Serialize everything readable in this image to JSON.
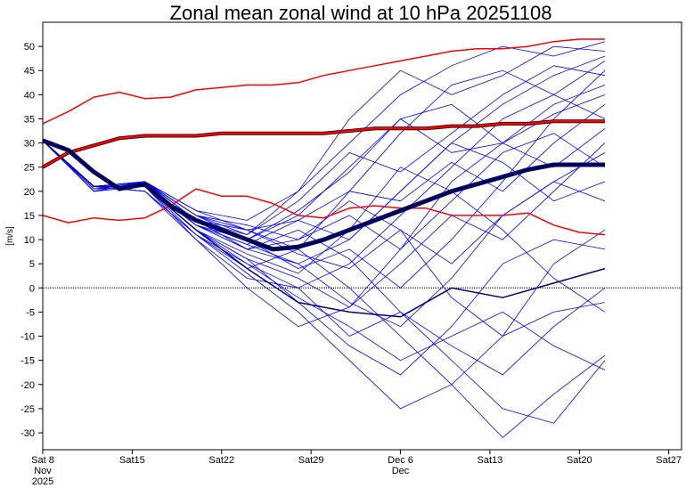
{
  "chart_data": {
    "type": "line",
    "title": "Zonal mean zonal wind at 10 hPa 20251108",
    "ylabel": "[m/s]",
    "xlabel": "",
    "ylim": [
      -33.5,
      55
    ],
    "xlim_days": [
      0,
      50
    ],
    "yticks": [
      50,
      45,
      40,
      35,
      30,
      25,
      20,
      15,
      10,
      5,
      0,
      -5,
      -10,
      -15,
      -20,
      -25,
      -30
    ],
    "xticks": [
      {
        "day": 0,
        "lines": [
          "Sat 8",
          "Nov",
          "2025"
        ]
      },
      {
        "day": 7,
        "lines": [
          "Sat15"
        ]
      },
      {
        "day": 14,
        "lines": [
          "Sat22"
        ]
      },
      {
        "day": 21,
        "lines": [
          "Sat29"
        ]
      },
      {
        "day": 28,
        "lines": [
          "Dec 6",
          "Dec"
        ]
      },
      {
        "day": 35,
        "lines": [
          "Sat13"
        ]
      },
      {
        "day": 42,
        "lines": [
          "Sat20"
        ]
      },
      {
        "day": 49,
        "lines": [
          "Sat27"
        ]
      }
    ],
    "zero_line": 0,
    "colors": {
      "member": "#0000ff",
      "member_dark": "#000080",
      "mean": "#000033",
      "clim": "#ff0000"
    },
    "member_days": [
      0,
      4,
      8,
      12,
      16,
      20,
      24,
      28,
      32,
      36,
      40,
      44
    ],
    "members": [
      [
        30.5,
        21,
        22,
        14,
        8,
        5,
        10,
        20,
        30,
        38,
        44,
        48
      ],
      [
        30.5,
        21,
        21,
        12,
        5,
        -2,
        -8,
        -15,
        -10,
        -5,
        -12,
        -17
      ],
      [
        30.5,
        20,
        22,
        16,
        14,
        20,
        30,
        40,
        46,
        50,
        48,
        51
      ],
      [
        30.5,
        21,
        20,
        11,
        3,
        -5,
        -15,
        -25,
        -20,
        -10,
        -5,
        -3
      ],
      [
        30.5,
        20.5,
        21,
        13,
        10,
        15,
        25,
        35,
        28,
        30,
        38,
        42
      ],
      [
        30.5,
        21,
        22,
        15,
        12,
        8,
        0,
        -10,
        -20,
        -31,
        -22,
        -14
      ],
      [
        30.5,
        21,
        21,
        10,
        2,
        0,
        5,
        15,
        25,
        35,
        40,
        35
      ],
      [
        30.5,
        20,
        22,
        14,
        11,
        18,
        28,
        24,
        32,
        40,
        46,
        44
      ],
      [
        30.5,
        21,
        21,
        12,
        6,
        2,
        -4,
        5,
        15,
        10,
        20,
        30
      ],
      [
        30.5,
        20.5,
        22,
        13,
        8,
        12,
        6,
        -5,
        -15,
        -25,
        -28,
        -15
      ],
      [
        30.5,
        21,
        20,
        11,
        4,
        8,
        20,
        32,
        42,
        45,
        40,
        47
      ],
      [
        30.5,
        21,
        22,
        15,
        13,
        10,
        15,
        8,
        18,
        28,
        32,
        25
      ],
      [
        30.5,
        20,
        21,
        12,
        7,
        3,
        12,
        25,
        20,
        12,
        2,
        -5
      ],
      [
        30.5,
        21,
        22,
        16,
        12,
        14,
        20,
        18,
        26,
        20,
        30,
        38
      ],
      [
        30.5,
        20.5,
        21,
        13,
        9,
        5,
        -3,
        -8,
        2,
        15,
        22,
        18
      ],
      [
        30.5,
        21,
        21,
        11,
        5,
        0,
        -10,
        -5,
        -12,
        -18,
        -8,
        0
      ],
      [
        30.5,
        20,
        22,
        14,
        10,
        16,
        24,
        35,
        38,
        30,
        25,
        33
      ],
      [
        30.5,
        21,
        21,
        12,
        6,
        -3,
        -12,
        -18,
        -8,
        5,
        10,
        8
      ],
      [
        30.5,
        21,
        22,
        15,
        11,
        20,
        35,
        45,
        40,
        44,
        50,
        49
      ],
      [
        30.5,
        20.5,
        21,
        13,
        8,
        10,
        18,
        12,
        5,
        15,
        22,
        28
      ],
      [
        30.5,
        21,
        20,
        10,
        0,
        -8,
        -4,
        8,
        22,
        30,
        36,
        40
      ],
      [
        30.5,
        20,
        22,
        14,
        12,
        7,
        4,
        12,
        -2,
        -10,
        5,
        12
      ],
      [
        30.5,
        21,
        21,
        13,
        9,
        14,
        10,
        20,
        30,
        26,
        18,
        22
      ],
      [
        30.5,
        21,
        22,
        15,
        10,
        4,
        8,
        0,
        10,
        22,
        35,
        45
      ]
    ],
    "dark_member": [
      30.5,
      21,
      21,
      12,
      4,
      -3,
      -5,
      -6,
      0,
      -2,
      1,
      4
    ],
    "line_days": [
      0,
      2,
      4,
      6,
      8,
      10,
      12,
      14,
      16,
      18,
      20,
      22,
      24,
      26,
      28,
      30,
      32,
      34,
      36,
      38,
      40,
      42,
      44
    ],
    "ensemble_mean": [
      30.5,
      28.5,
      24,
      20.5,
      21.5,
      17,
      14,
      12,
      10,
      8,
      8.5,
      10,
      12,
      14,
      16,
      18,
      20,
      21.5,
      23,
      24.5,
      25.5,
      25.5,
      25.5
    ],
    "clim_mean": [
      25,
      28,
      29.5,
      31,
      31.5,
      31.5,
      31.5,
      32,
      32,
      32,
      32,
      32,
      32.5,
      33,
      33,
      33,
      33.5,
      33.5,
      34,
      34,
      34.5,
      34.5,
      34.5
    ],
    "clim_max": [
      34,
      36.5,
      39.5,
      40.5,
      39.2,
      39.5,
      41,
      41.5,
      42,
      42,
      42.5,
      44,
      45,
      46,
      47,
      48,
      49,
      49.5,
      49.5,
      50,
      51,
      51.5,
      51.5
    ],
    "clim_min": [
      15,
      13.5,
      14.5,
      14,
      14.5,
      17,
      20.5,
      19,
      19,
      17.5,
      15,
      14.5,
      16.5,
      17,
      16.5,
      16.5,
      15,
      15,
      15,
      15.5,
      13,
      11.5,
      11
    ]
  }
}
